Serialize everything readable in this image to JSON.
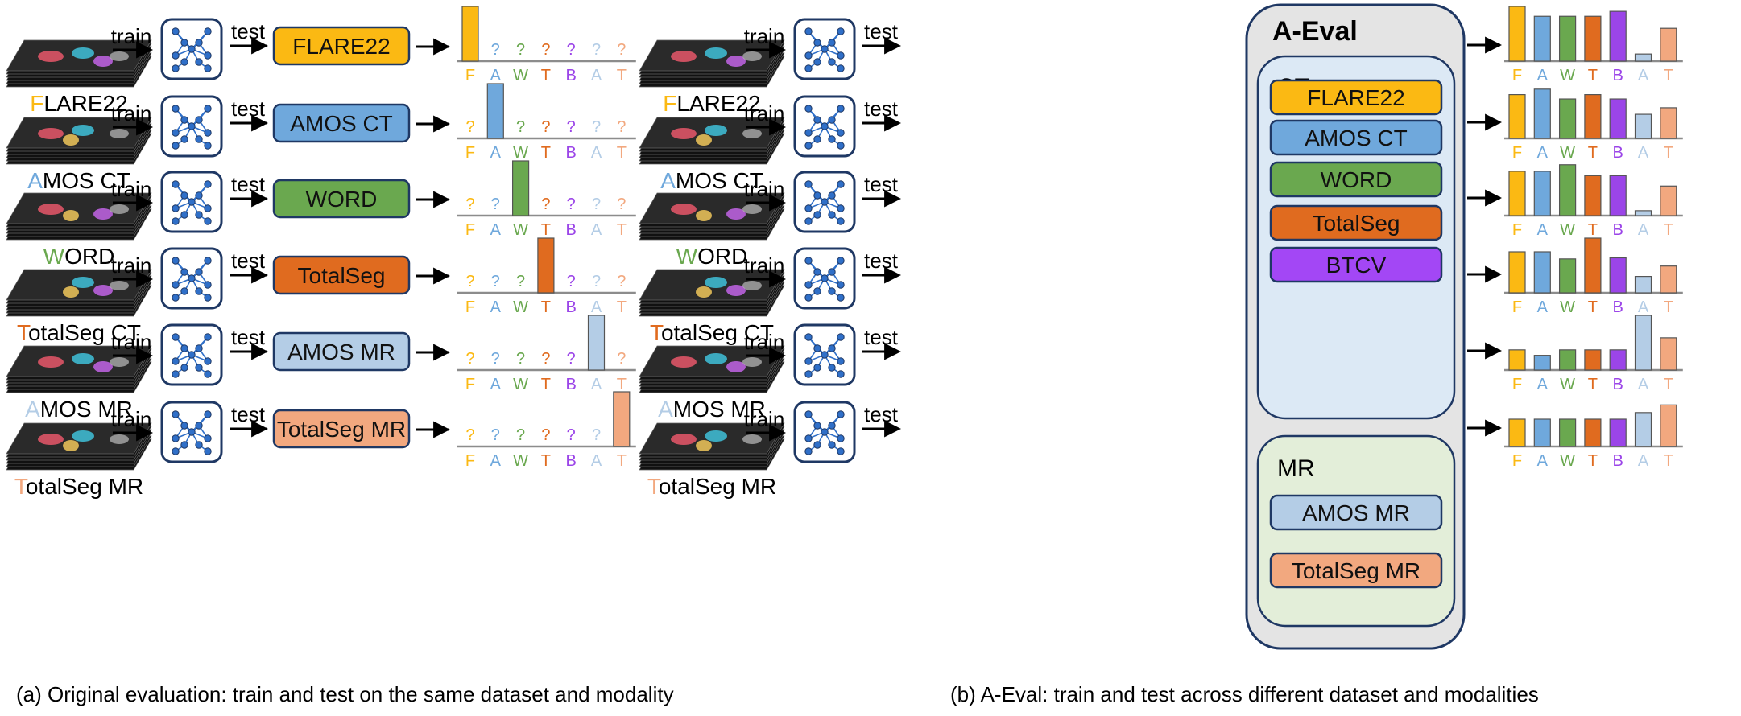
{
  "labels": {
    "train": "train",
    "test": "test",
    "aeval_title": "A-Eval",
    "ct_group": "CT",
    "mr_group": "MR",
    "question": "?"
  },
  "captions": {
    "left": "(a) Original evaluation: train and test on the same dataset and modality",
    "right": "(b) A-Eval: train and test across different dataset and modalities"
  },
  "colors": {
    "F": "#fbb913",
    "A": "#6fa8dc",
    "W": "#6aa84f",
    "T": "#e06b1f",
    "B": "#9b45e8",
    "A2": "#b4cde6",
    "T2": "#f2a87f",
    "btcv": "#a347f5",
    "line": "#1f3864",
    "axis": "#8c8c8c",
    "ct_bg": "#dce9f5",
    "mr_bg": "#e3eed9",
    "aeval_bg": "#e4e4e4"
  },
  "axis_letters": [
    "F",
    "A",
    "W",
    "T",
    "B",
    "A",
    "T"
  ],
  "datasets": [
    {
      "name_first": "F",
      "name_rest": "LARE22",
      "box_label": "FLARE22",
      "color_key": "F"
    },
    {
      "name_first": "A",
      "name_rest": "MOS CT",
      "box_label": "AMOS CT",
      "color_key": "A"
    },
    {
      "name_first": "W",
      "name_rest": "ORD",
      "box_label": "WORD",
      "color_key": "W"
    },
    {
      "name_first": "T",
      "name_rest": "otalSeg CT",
      "box_label": "TotalSeg",
      "color_key": "T"
    },
    {
      "name_first": "A",
      "name_rest": "MOS MR",
      "box_label": "AMOS MR",
      "color_key": "A2"
    },
    {
      "name_first": "T",
      "name_rest": "otalSeg MR",
      "box_label": "TotalSeg MR",
      "color_key": "T2"
    }
  ],
  "ct_boxes": [
    "FLARE22",
    "AMOS CT",
    "WORD",
    "TotalSeg",
    "BTCV"
  ],
  "mr_boxes": [
    "AMOS MR",
    "TotalSeg MR"
  ],
  "chart_data": [
    {
      "type": "bar",
      "panel": "a",
      "row": 1,
      "categories": [
        "F",
        "A",
        "W",
        "T",
        "B",
        "A",
        "T"
      ],
      "values": [
        1,
        null,
        null,
        null,
        null,
        null,
        null
      ]
    },
    {
      "type": "bar",
      "panel": "a",
      "row": 2,
      "categories": [
        "F",
        "A",
        "W",
        "T",
        "B",
        "A",
        "T"
      ],
      "values": [
        null,
        1,
        null,
        null,
        null,
        null,
        null
      ]
    },
    {
      "type": "bar",
      "panel": "a",
      "row": 3,
      "categories": [
        "F",
        "A",
        "W",
        "T",
        "B",
        "A",
        "T"
      ],
      "values": [
        null,
        null,
        1,
        null,
        null,
        null,
        null
      ]
    },
    {
      "type": "bar",
      "panel": "a",
      "row": 4,
      "categories": [
        "F",
        "A",
        "W",
        "T",
        "B",
        "A",
        "T"
      ],
      "values": [
        null,
        null,
        null,
        1,
        null,
        null,
        null
      ]
    },
    {
      "type": "bar",
      "panel": "a",
      "row": 5,
      "categories": [
        "F",
        "A",
        "W",
        "T",
        "B",
        "A",
        "T"
      ],
      "values": [
        null,
        null,
        null,
        null,
        null,
        1,
        null
      ]
    },
    {
      "type": "bar",
      "panel": "a",
      "row": 6,
      "categories": [
        "F",
        "A",
        "W",
        "T",
        "B",
        "A",
        "T"
      ],
      "values": [
        null,
        null,
        null,
        null,
        null,
        null,
        1
      ]
    },
    {
      "type": "bar",
      "panel": "b",
      "row": 1,
      "categories": [
        "F",
        "A",
        "W",
        "T",
        "B",
        "A",
        "T"
      ],
      "values": [
        1.0,
        0.82,
        0.82,
        0.82,
        0.91,
        0.13,
        0.6
      ]
    },
    {
      "type": "bar",
      "panel": "b",
      "row": 2,
      "categories": [
        "F",
        "A",
        "W",
        "T",
        "B",
        "A",
        "T"
      ],
      "values": [
        0.8,
        0.9,
        0.72,
        0.8,
        0.72,
        0.44,
        0.56
      ]
    },
    {
      "type": "bar",
      "panel": "b",
      "row": 3,
      "categories": [
        "F",
        "A",
        "W",
        "T",
        "B",
        "A",
        "T"
      ],
      "values": [
        0.81,
        0.81,
        0.93,
        0.73,
        0.73,
        0.09,
        0.54
      ]
    },
    {
      "type": "bar",
      "panel": "b",
      "row": 4,
      "categories": [
        "F",
        "A",
        "W",
        "T",
        "B",
        "A",
        "T"
      ],
      "values": [
        0.75,
        0.75,
        0.62,
        1.0,
        0.64,
        0.3,
        0.49
      ]
    },
    {
      "type": "bar",
      "panel": "b",
      "row": 5,
      "categories": [
        "F",
        "A",
        "W",
        "T",
        "B",
        "A",
        "T"
      ],
      "values": [
        0.37,
        0.27,
        0.37,
        0.37,
        0.37,
        1.0,
        0.59
      ]
    },
    {
      "type": "bar",
      "panel": "b",
      "row": 6,
      "categories": [
        "F",
        "A",
        "W",
        "T",
        "B",
        "A",
        "T"
      ],
      "values": [
        0.5,
        0.5,
        0.5,
        0.5,
        0.5,
        0.62,
        0.76
      ]
    }
  ]
}
